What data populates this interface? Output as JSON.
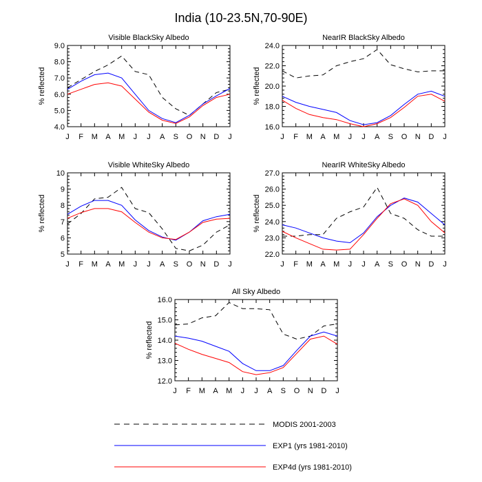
{
  "figure_title": "India (10-23.5N,70-90E)",
  "legend": [
    {
      "label": "MODIS 2001-2003",
      "color": "#000000",
      "dash": "8,6"
    },
    {
      "label": "EXP1 (yrs 1981-2010)",
      "color": "#0000ff",
      "dash": ""
    },
    {
      "label": "EXP4d (yrs 1981-2010)",
      "color": "#ff0000",
      "dash": ""
    }
  ],
  "chart_data": [
    {
      "type": "line",
      "title": "Visible BlackSky Albedo",
      "ylabel": "% reflected",
      "categories": [
        "J",
        "F",
        "M",
        "A",
        "M",
        "J",
        "J",
        "A",
        "S",
        "O",
        "N",
        "D",
        "J"
      ],
      "ylim": [
        4.0,
        9.0
      ],
      "yticks": [
        "4.0",
        "5.0",
        "6.0",
        "7.0",
        "8.0",
        "9.0"
      ],
      "series": [
        {
          "name": "MODIS 2001-2003",
          "values": [
            6.4,
            6.9,
            7.4,
            7.8,
            8.35,
            7.4,
            7.2,
            5.8,
            5.1,
            4.7,
            5.4,
            6.1,
            6.3
          ]
        },
        {
          "name": "EXP1 (yrs 1981-2010)",
          "values": [
            6.3,
            6.8,
            7.2,
            7.3,
            7.0,
            6.0,
            5.0,
            4.5,
            4.25,
            4.7,
            5.4,
            5.9,
            6.35
          ]
        },
        {
          "name": "EXP4d (yrs 1981-2010)",
          "values": [
            6.0,
            6.3,
            6.6,
            6.7,
            6.5,
            5.7,
            4.9,
            4.4,
            4.2,
            4.6,
            5.3,
            5.8,
            6.0
          ]
        }
      ]
    },
    {
      "type": "line",
      "title": "NearIR BlackSky Albedo",
      "ylabel": "% reflected",
      "categories": [
        "J",
        "F",
        "M",
        "A",
        "M",
        "J",
        "J",
        "A",
        "S",
        "O",
        "N",
        "D",
        "J"
      ],
      "ylim": [
        16.0,
        24.0
      ],
      "yticks": [
        "16.0",
        "18.0",
        "20.0",
        "22.0",
        "24.0"
      ],
      "series": [
        {
          "name": "MODIS 2001-2003",
          "values": [
            21.5,
            20.8,
            21.0,
            21.1,
            22.0,
            22.4,
            22.7,
            23.6,
            22.1,
            21.7,
            21.4,
            21.5,
            21.5
          ]
        },
        {
          "name": "EXP1 (yrs 1981-2010)",
          "values": [
            19.0,
            18.4,
            18.0,
            17.7,
            17.4,
            16.6,
            16.2,
            16.4,
            17.1,
            18.2,
            19.2,
            19.5,
            19.0
          ]
        },
        {
          "name": "EXP4d (yrs 1981-2010)",
          "values": [
            18.6,
            17.8,
            17.2,
            16.9,
            16.7,
            16.3,
            16.0,
            16.3,
            16.9,
            17.9,
            19.0,
            19.2,
            18.5
          ]
        }
      ]
    },
    {
      "type": "line",
      "title": "Visible WhiteSky Albedo",
      "ylabel": "% reflected",
      "categories": [
        "J",
        "F",
        "M",
        "A",
        "M",
        "J",
        "J",
        "A",
        "S",
        "O",
        "N",
        "D",
        "J"
      ],
      "ylim": [
        5,
        10
      ],
      "yticks": [
        "5",
        "6",
        "7",
        "8",
        "9",
        "10"
      ],
      "series": [
        {
          "name": "MODIS 2001-2003",
          "values": [
            6.85,
            7.5,
            8.4,
            8.5,
            9.1,
            7.8,
            7.55,
            6.55,
            5.35,
            5.2,
            5.55,
            6.35,
            6.8
          ]
        },
        {
          "name": "EXP1 (yrs 1981-2010)",
          "values": [
            7.45,
            7.95,
            8.3,
            8.3,
            8.0,
            7.1,
            6.45,
            6.05,
            5.85,
            6.35,
            7.05,
            7.3,
            7.45
          ]
        },
        {
          "name": "EXP4d (yrs 1981-2010)",
          "values": [
            7.2,
            7.55,
            7.8,
            7.8,
            7.6,
            6.95,
            6.35,
            6.0,
            5.9,
            6.35,
            6.95,
            7.15,
            7.2
          ]
        }
      ]
    },
    {
      "type": "line",
      "title": "NearIR WhiteSky Albedo",
      "ylabel": "% reflected",
      "categories": [
        "J",
        "F",
        "M",
        "A",
        "M",
        "J",
        "J",
        "A",
        "S",
        "O",
        "N",
        "D",
        "J"
      ],
      "ylim": [
        22.0,
        27.0
      ],
      "yticks": [
        "22.0",
        "23.0",
        "24.0",
        "25.0",
        "26.0",
        "27.0"
      ],
      "series": [
        {
          "name": "MODIS 2001-2003",
          "values": [
            23.1,
            23.1,
            23.2,
            23.2,
            24.2,
            24.6,
            24.9,
            26.1,
            24.5,
            24.2,
            23.5,
            23.1,
            23.1
          ]
        },
        {
          "name": "EXP1 (yrs 1981-2010)",
          "values": [
            23.8,
            23.6,
            23.3,
            23.0,
            22.8,
            22.7,
            23.3,
            24.3,
            25.0,
            25.45,
            25.2,
            24.5,
            23.8
          ]
        },
        {
          "name": "EXP4d (yrs 1981-2010)",
          "values": [
            23.4,
            23.0,
            22.65,
            22.3,
            22.25,
            22.3,
            23.2,
            24.2,
            25.1,
            25.4,
            25.0,
            24.0,
            23.3
          ]
        }
      ]
    },
    {
      "type": "line",
      "title": "All Sky Albedo",
      "ylabel": "% reflected",
      "categories": [
        "J",
        "F",
        "M",
        "A",
        "M",
        "J",
        "J",
        "A",
        "S",
        "O",
        "N",
        "D",
        "J"
      ],
      "ylim": [
        12.0,
        16.0
      ],
      "yticks": [
        "12.0",
        "13.0",
        "14.0",
        "15.0",
        "16.0"
      ],
      "series": [
        {
          "name": "MODIS 2001-2003",
          "values": [
            14.75,
            14.8,
            15.1,
            15.2,
            15.85,
            15.55,
            15.55,
            15.5,
            14.3,
            14.05,
            14.2,
            14.7,
            14.8
          ]
        },
        {
          "name": "EXP1 (yrs 1981-2010)",
          "values": [
            14.2,
            14.1,
            13.95,
            13.7,
            13.45,
            12.85,
            12.5,
            12.5,
            12.75,
            13.5,
            14.2,
            14.4,
            14.2
          ]
        },
        {
          "name": "EXP4d (yrs 1981-2010)",
          "values": [
            13.85,
            13.55,
            13.3,
            13.1,
            12.9,
            12.45,
            12.3,
            12.4,
            12.65,
            13.35,
            14.05,
            14.2,
            13.8
          ]
        }
      ]
    }
  ]
}
